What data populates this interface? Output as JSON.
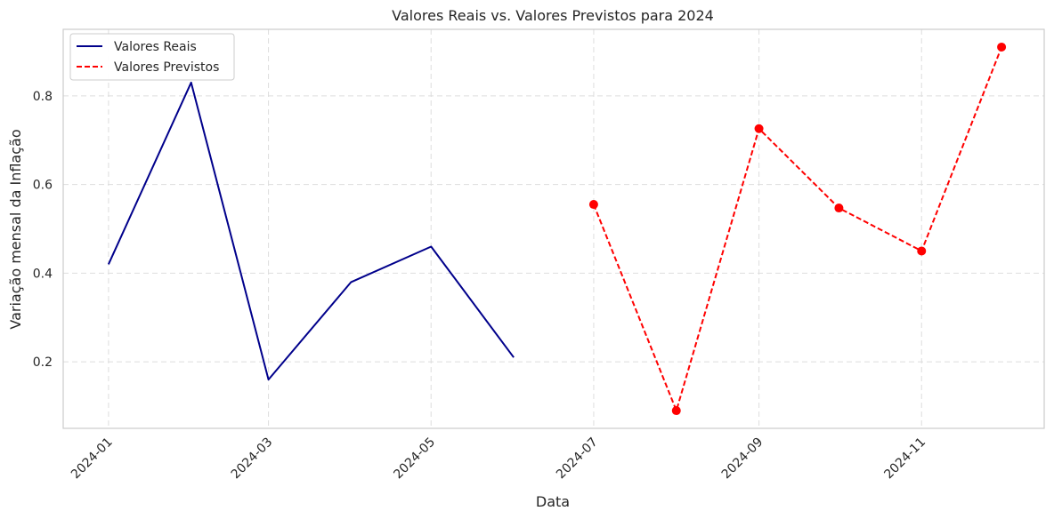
{
  "chart_data": {
    "type": "line",
    "title": "Valores Reais vs. Valores Previstos para 2024",
    "xlabel": "Data",
    "ylabel": "Variação mensal da Inflação",
    "x_tick_labels": [
      "2024-01",
      "2024-03",
      "2024-05",
      "2024-07",
      "2024-09",
      "2024-11"
    ],
    "y_ticks": [
      0.2,
      0.4,
      0.6,
      0.8
    ],
    "x_range": [
      "2023-12-15",
      "2024-12-17"
    ],
    "ylim": [
      0.05,
      0.95
    ],
    "grid": true,
    "legend_position": "top-left",
    "series": [
      {
        "name": "Valores Reais",
        "style": "solid",
        "color": "#00008b",
        "marker": false,
        "x": [
          "2024-01-01",
          "2024-02-01",
          "2024-03-01",
          "2024-04-01",
          "2024-05-01",
          "2024-06-01"
        ],
        "values": [
          0.42,
          0.83,
          0.16,
          0.38,
          0.46,
          0.21
        ]
      },
      {
        "name": "Valores Previstos",
        "style": "dashed",
        "color": "#ff0000",
        "marker": true,
        "x": [
          "2024-07-01",
          "2024-08-01",
          "2024-09-01",
          "2024-10-01",
          "2024-11-01",
          "2024-12-01"
        ],
        "values": [
          0.555,
          0.09,
          0.726,
          0.547,
          0.45,
          0.91
        ]
      }
    ]
  }
}
